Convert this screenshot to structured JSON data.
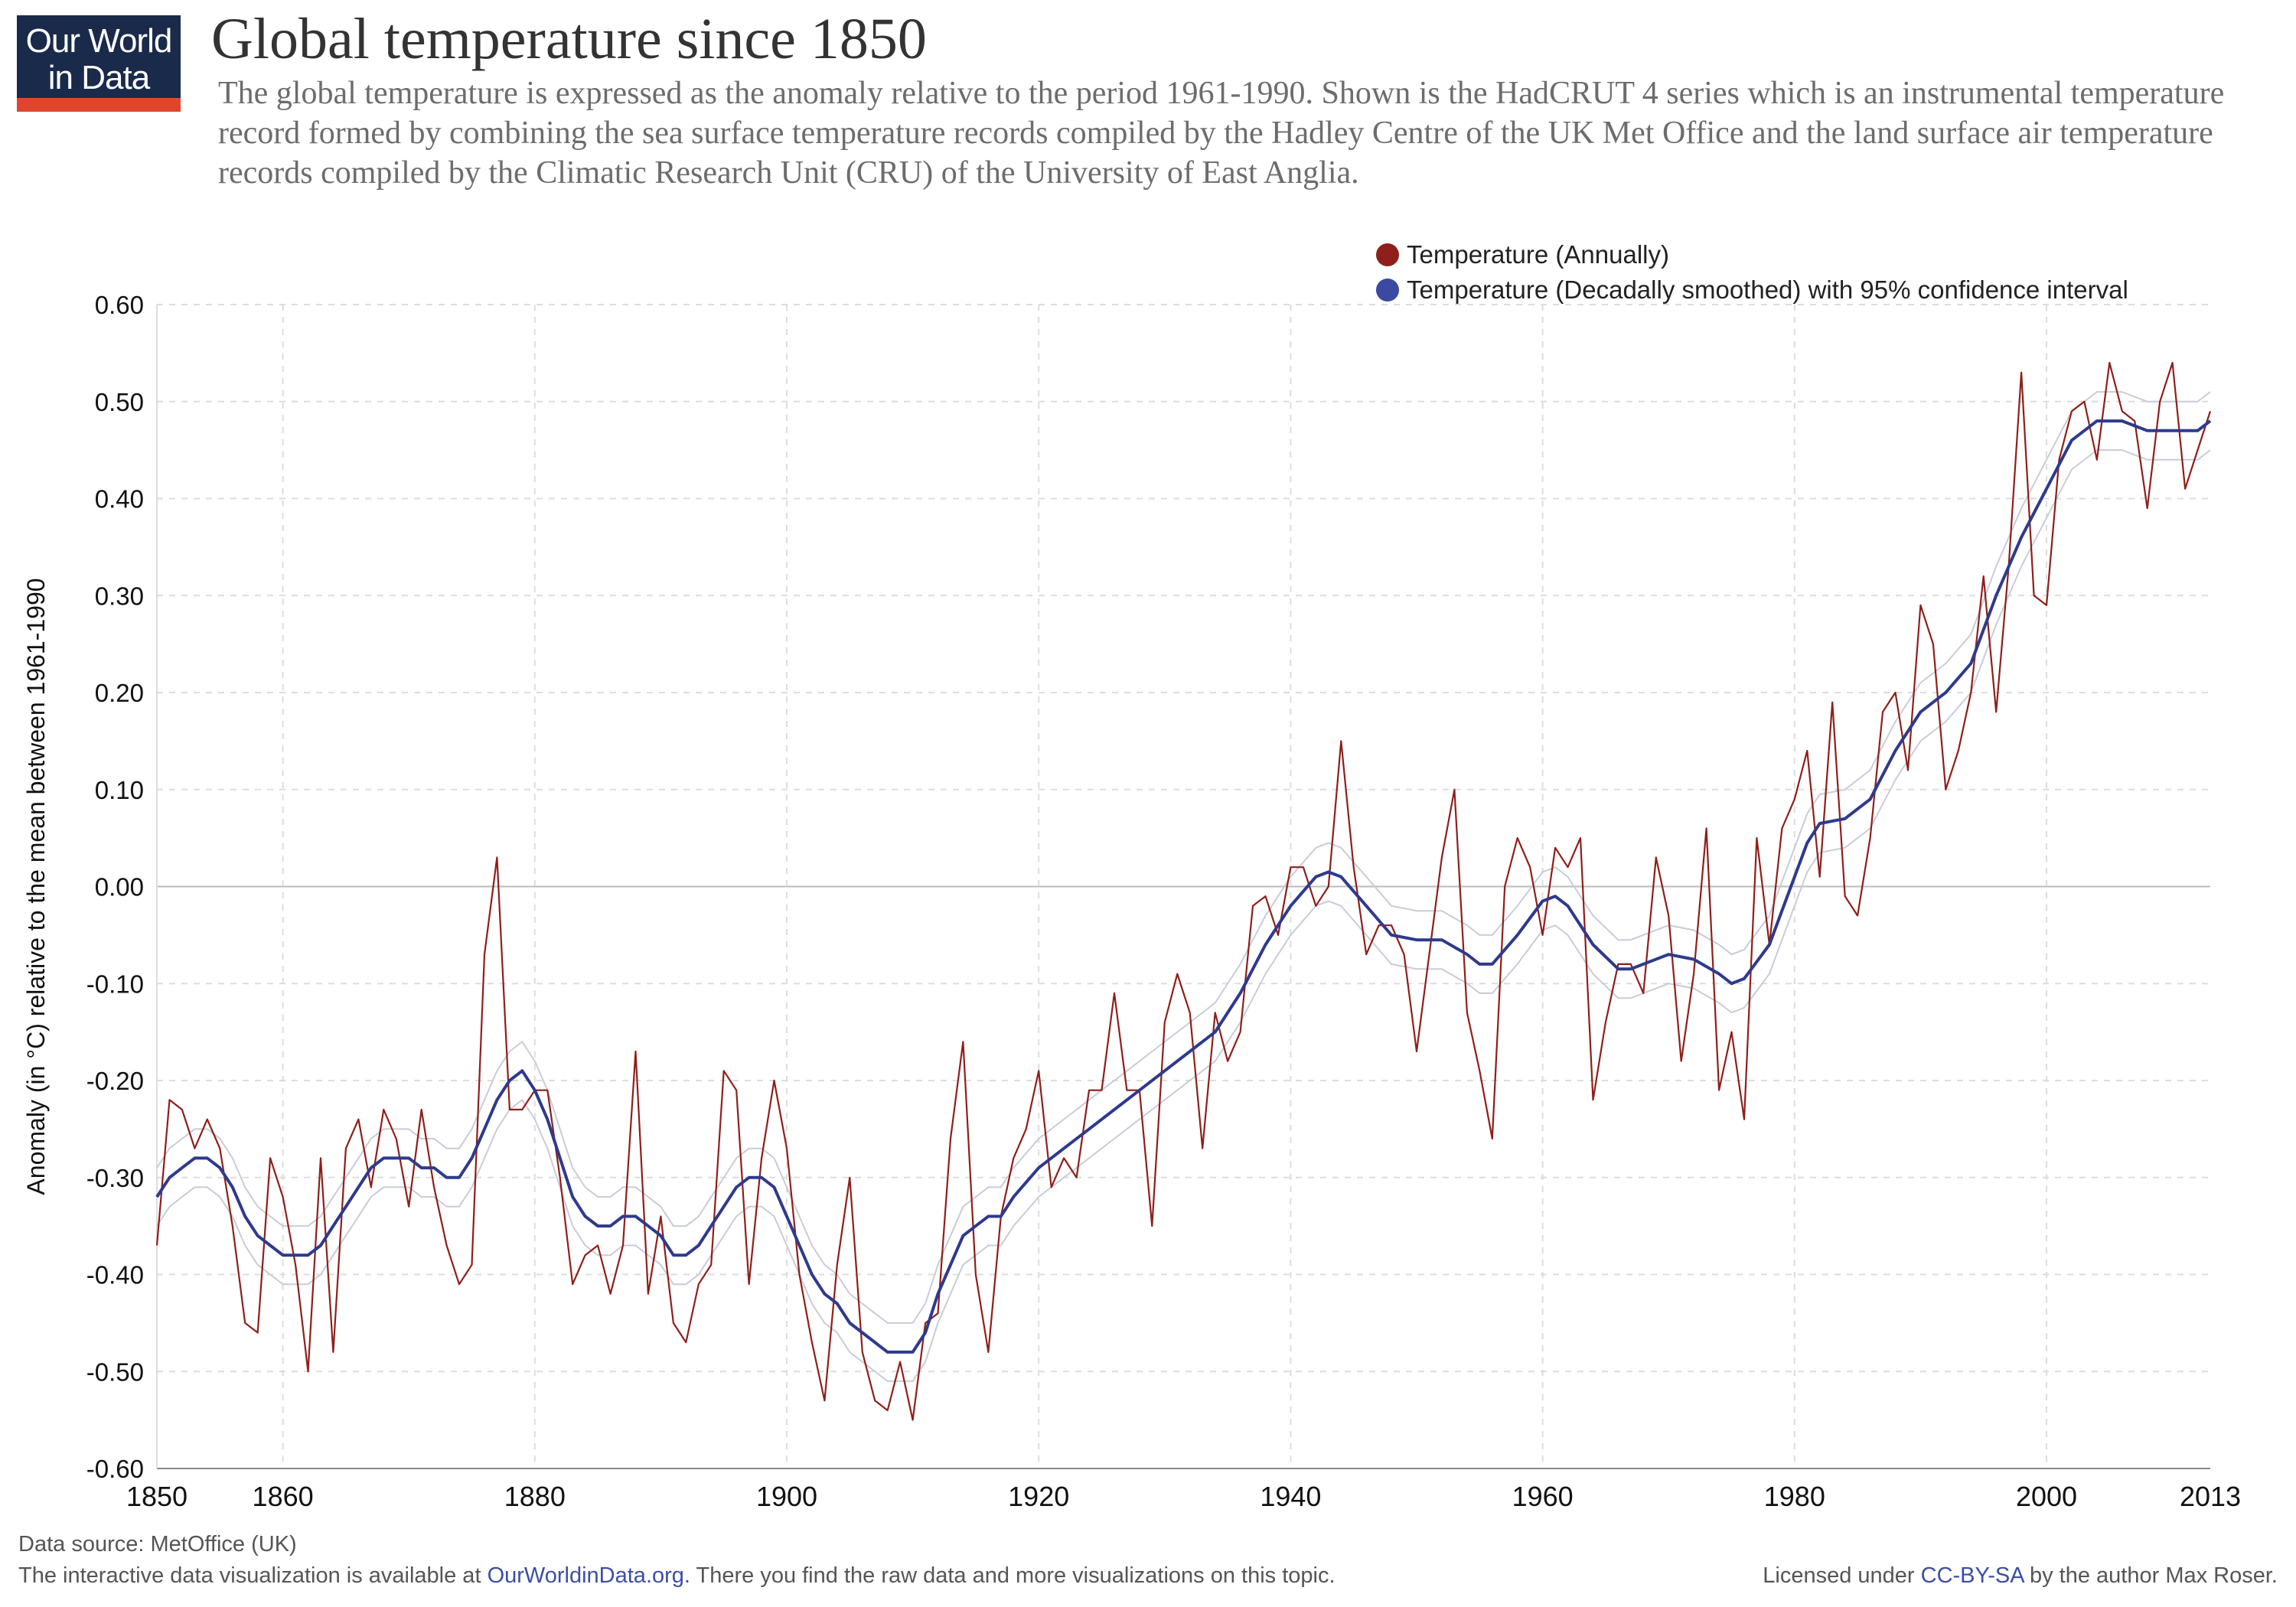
{
  "brand": {
    "logo_line1": "Our World",
    "logo_line2": "in Data"
  },
  "title": "Global temperature since 1850",
  "subtitle": "The global temperature is expressed as the anomaly relative to the period 1961-1990. Shown is the HadCRUT 4 series which is an instrumental temperature record formed by combining the sea surface temperature records compiled by the Hadley Centre of the UK Met Office and the land surface air temperature records compiled by the Climatic Research Unit (CRU) of the University of East Anglia.",
  "colors": {
    "annual": "#8e1f1a",
    "smoothed": "#2e3a8c",
    "confidence": "#c9ccd8",
    "grid": "#dddddd",
    "zero_line": "#bbbbbb",
    "logo_bg": "#1a2a4a",
    "logo_bar": "#e0462e"
  },
  "legend": {
    "annual": "Temperature (Annually)",
    "smoothed": "Temperature (Decadally smoothed) with 95% confidence interval"
  },
  "footer": {
    "source": "Data source: MetOffice (UK)",
    "interactive_prefix": "The interactive data visualization is available at ",
    "interactive_link": "OurWorldinData.org.",
    "interactive_suffix": " There you find the raw data and more visualizations on this topic.",
    "license_prefix": "Licensed under ",
    "license_link": "CC-BY-SA",
    "license_suffix": " by the author Max Roser."
  },
  "chart_data": {
    "type": "line",
    "ylabel": "Anomaly (in °C) relative to the mean between 1961-1990",
    "xlim": [
      1850,
      2013
    ],
    "ylim": [
      -0.6,
      0.6
    ],
    "x_ticks": [
      1850,
      1860,
      1880,
      1900,
      1920,
      1940,
      1960,
      1980,
      2000,
      2013
    ],
    "y_ticks": [
      "0.60",
      "0.50",
      "0.40",
      "0.30",
      "0.20",
      "0.10",
      "0.00",
      "-0.10",
      "-0.20",
      "-0.30",
      "-0.40",
      "-0.50",
      "-0.60"
    ],
    "grid": true,
    "legend_position": "top-right",
    "series": [
      {
        "name": "Temperature (Annually)",
        "x_start": 1850,
        "values": [
          -0.37,
          -0.22,
          -0.23,
          -0.27,
          -0.24,
          -0.27,
          -0.35,
          -0.45,
          -0.46,
          -0.28,
          -0.32,
          -0.39,
          -0.5,
          -0.28,
          -0.48,
          -0.27,
          -0.24,
          -0.31,
          -0.23,
          -0.26,
          -0.33,
          -0.23,
          -0.31,
          -0.37,
          -0.41,
          -0.39,
          -0.07,
          0.03,
          -0.23,
          -0.23,
          -0.21,
          -0.21,
          -0.3,
          -0.41,
          -0.38,
          -0.37,
          -0.42,
          -0.37,
          -0.17,
          -0.42,
          -0.34,
          -0.45,
          -0.47,
          -0.41,
          -0.39,
          -0.19,
          -0.21,
          -0.41,
          -0.28,
          -0.2,
          -0.27,
          -0.4,
          -0.47,
          -0.53,
          -0.39,
          -0.3,
          -0.48,
          -0.53,
          -0.54,
          -0.49,
          -0.55,
          -0.45,
          -0.44,
          -0.26,
          -0.16,
          -0.4,
          -0.48,
          -0.34,
          -0.28,
          -0.25,
          -0.19,
          -0.31,
          -0.28,
          -0.3,
          -0.21,
          -0.21,
          -0.11,
          -0.21,
          -0.21,
          -0.35,
          -0.14,
          -0.09,
          -0.13,
          -0.27,
          -0.13,
          -0.18,
          -0.15,
          -0.02,
          -0.01,
          -0.05,
          0.02,
          0.02,
          -0.02,
          0.0,
          0.15,
          0.02,
          -0.07,
          -0.04,
          -0.04,
          -0.07,
          -0.17,
          -0.07,
          0.03,
          0.1,
          -0.13,
          -0.19,
          -0.26,
          0.0,
          0.05,
          0.02,
          -0.05,
          0.04,
          0.02,
          0.05,
          -0.22,
          -0.14,
          -0.08,
          -0.08,
          -0.11,
          0.03,
          -0.03,
          -0.18,
          -0.09,
          0.06,
          -0.21,
          -0.15,
          -0.24,
          0.05,
          -0.06,
          0.06,
          0.09,
          0.14,
          0.01,
          0.19,
          -0.01,
          -0.03,
          0.05,
          0.18,
          0.2,
          0.12,
          0.29,
          0.25,
          0.1,
          0.14,
          0.2,
          0.32,
          0.18,
          0.33,
          0.53,
          0.3,
          0.29,
          0.44,
          0.49,
          0.5,
          0.44,
          0.54,
          0.49,
          0.48,
          0.39,
          0.5,
          0.54,
          0.41,
          0.45,
          0.49
        ]
      },
      {
        "name": "Temperature (Decadally smoothed) with 95% confidence interval",
        "x": [
          1850,
          1851,
          1852,
          1853,
          1854,
          1855,
          1856,
          1857,
          1858,
          1859,
          1860,
          1861,
          1862,
          1863,
          1864,
          1865,
          1866,
          1867,
          1868,
          1869,
          1870,
          1871,
          1872,
          1873,
          1874,
          1875,
          1876,
          1877,
          1878,
          1879,
          1880,
          1881,
          1882,
          1883,
          1884,
          1885,
          1886,
          1887,
          1888,
          1889,
          1890,
          1891,
          1892,
          1893,
          1894,
          1895,
          1896,
          1897,
          1898,
          1899,
          1900,
          1901,
          1902,
          1903,
          1904,
          1905,
          1906,
          1907,
          1908,
          1909,
          1910,
          1911,
          1912,
          1913,
          1914,
          1915,
          1916,
          1917,
          1918,
          1920,
          1922,
          1924,
          1926,
          1928,
          1930,
          1932,
          1934,
          1936,
          1938,
          1940,
          1942,
          1943,
          1944,
          1946,
          1948,
          1950,
          1952,
          1954,
          1955,
          1956,
          1958,
          1960,
          1961,
          1962,
          1964,
          1966,
          1967,
          1970,
          1972,
          1974,
          1975,
          1976,
          1978,
          1980,
          1981,
          1982,
          1984,
          1986,
          1988,
          1990,
          1992,
          1994,
          1996,
          1998,
          2000,
          2002,
          2004,
          2005,
          2006,
          2008,
          2010,
          2012,
          2013
        ],
        "values": [
          -0.32,
          -0.3,
          -0.29,
          -0.28,
          -0.28,
          -0.29,
          -0.31,
          -0.34,
          -0.36,
          -0.37,
          -0.38,
          -0.38,
          -0.38,
          -0.37,
          -0.35,
          -0.33,
          -0.31,
          -0.29,
          -0.28,
          -0.28,
          -0.28,
          -0.29,
          -0.29,
          -0.3,
          -0.3,
          -0.28,
          -0.25,
          -0.22,
          -0.2,
          -0.19,
          -0.21,
          -0.24,
          -0.28,
          -0.32,
          -0.34,
          -0.35,
          -0.35,
          -0.34,
          -0.34,
          -0.35,
          -0.36,
          -0.38,
          -0.38,
          -0.37,
          -0.35,
          -0.33,
          -0.31,
          -0.3,
          -0.3,
          -0.31,
          -0.34,
          -0.37,
          -0.4,
          -0.42,
          -0.43,
          -0.45,
          -0.46,
          -0.47,
          -0.48,
          -0.48,
          -0.48,
          -0.46,
          -0.42,
          -0.39,
          -0.36,
          -0.35,
          -0.34,
          -0.34,
          -0.32,
          -0.29,
          -0.27,
          -0.25,
          -0.23,
          -0.21,
          -0.19,
          -0.17,
          -0.15,
          -0.11,
          -0.06,
          -0.02,
          0.01,
          0.015,
          0.01,
          -0.02,
          -0.05,
          -0.055,
          -0.055,
          -0.07,
          -0.08,
          -0.08,
          -0.05,
          -0.015,
          -0.01,
          -0.02,
          -0.06,
          -0.085,
          -0.085,
          -0.07,
          -0.075,
          -0.09,
          -0.1,
          -0.095,
          -0.06,
          0.01,
          0.045,
          0.065,
          0.07,
          0.09,
          0.14,
          0.18,
          0.2,
          0.23,
          0.3,
          0.36,
          0.41,
          0.46,
          0.48,
          0.48,
          0.48,
          0.47,
          0.47,
          0.47,
          0.48
        ]
      }
    ]
  }
}
